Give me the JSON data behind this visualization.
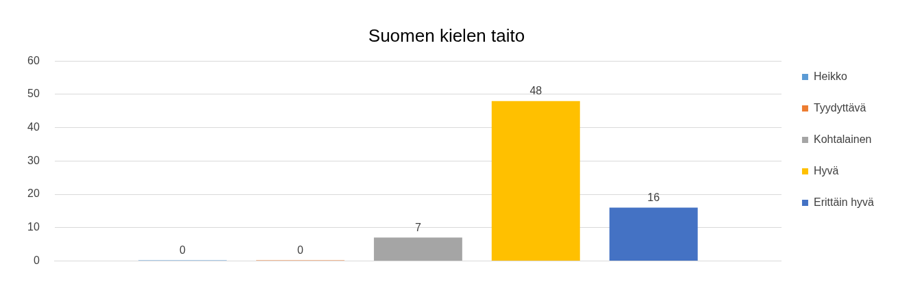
{
  "chart_data": {
    "type": "bar",
    "title": "Suomen kielen taito",
    "categories": [
      null
    ],
    "series": [
      {
        "name": "Heikko",
        "color": "#5b9bd5",
        "values": [
          0
        ]
      },
      {
        "name": "Tyydyttävä",
        "color": "#ed7d31",
        "values": [
          0
        ]
      },
      {
        "name": "Kohtalainen",
        "color": "#a5a5a5",
        "values": [
          7
        ]
      },
      {
        "name": "Hyvä",
        "color": "#ffc000",
        "values": [
          48
        ]
      },
      {
        "name": "Erittäin hyvä",
        "color": "#4472c4",
        "values": [
          16
        ]
      }
    ],
    "ylim": [
      0,
      60
    ],
    "yticks": [
      0,
      10,
      20,
      30,
      40,
      50,
      60
    ],
    "grid": "y",
    "legend": "right",
    "data_labels": true
  }
}
